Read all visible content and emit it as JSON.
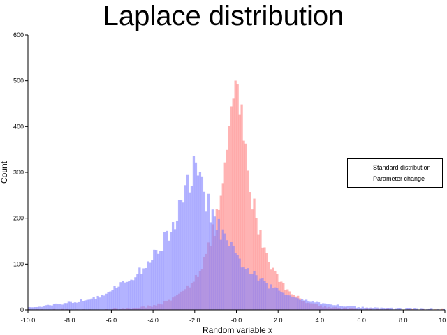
{
  "chart_data": {
    "type": "histogram",
    "title": "Laplace distribution",
    "xlabel": "Random variable x",
    "ylabel": "Count",
    "xlim": [
      -10.0,
      10.0
    ],
    "ylim": [
      0,
      600
    ],
    "xticks": [
      "-10.0",
      "-8.0",
      "-6.0",
      "-4.0",
      "-2.0",
      "-0.0",
      "2.0",
      "4.0",
      "6.0",
      "8.0",
      "10.0"
    ],
    "yticks": [
      "0",
      "100",
      "200",
      "300",
      "400",
      "500",
      "600"
    ],
    "bin_width": 0.1,
    "series": [
      {
        "name": "Standard distribution",
        "color": "#ff8080",
        "opacity": 0.6,
        "location": 0.0,
        "scale": 1.0,
        "peak_count": 520
      },
      {
        "name": "Parameter change",
        "color": "#8080ff",
        "opacity": 0.6,
        "location": -2.0,
        "scale": 2.0,
        "peak_count": 315
      }
    ],
    "legend_position": "right"
  }
}
